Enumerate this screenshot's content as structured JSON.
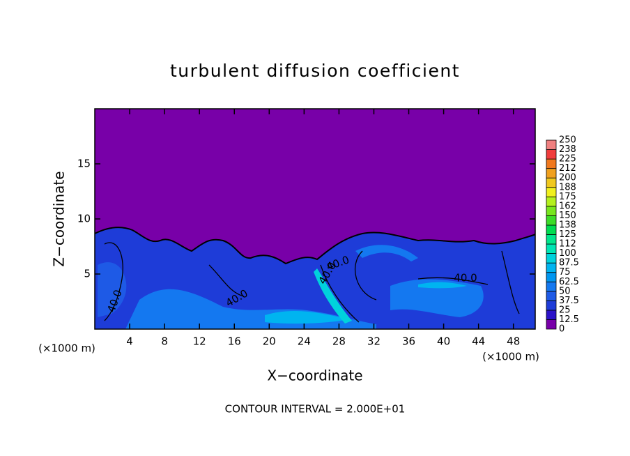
{
  "chart_data": {
    "type": "contour",
    "title": "turbulent diffusion coefficient",
    "xlabel": "X−coordinate",
    "ylabel": "Z−coordinate",
    "x_unit_labels": [
      "(×1000 m)",
      "(×1000 m)"
    ],
    "annotation": "CONTOUR INTERVAL = 2.000E+01",
    "contour_labels": [
      "40.0",
      "40.0",
      "40.0",
      "40.0",
      "40.0"
    ],
    "xlim": [
      0,
      50.5
    ],
    "xticks": [
      4,
      8,
      12,
      16,
      20,
      24,
      28,
      32,
      36,
      40,
      44,
      48
    ],
    "ylim": [
      0,
      20
    ],
    "yticks": [
      5,
      10,
      15
    ],
    "colorbar": {
      "levels": [
        0,
        12.5,
        25,
        37.5,
        50,
        62.5,
        75,
        87.5,
        100,
        112,
        125,
        138,
        150,
        162,
        175,
        188,
        200,
        212,
        225,
        238,
        250
      ],
      "colors": [
        "#7800a8",
        "#2c12c8",
        "#1e3cd8",
        "#1e5ae6",
        "#1478f0",
        "#0096f0",
        "#00b4f0",
        "#00d2dc",
        "#00e6b4",
        "#00e68c",
        "#00dc50",
        "#3cdc28",
        "#78e61e",
        "#b4f01e",
        "#f0f01e",
        "#f0c81e",
        "#f0a01e",
        "#f0781e",
        "#f03c3c",
        "#f08080"
      ]
    }
  }
}
